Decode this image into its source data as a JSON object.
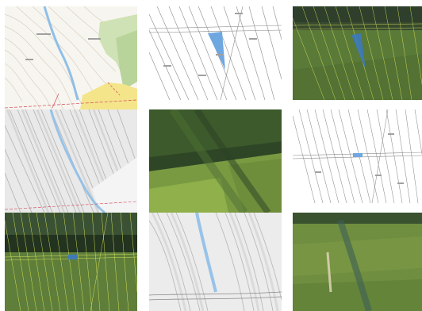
{
  "gallery": {
    "tiles": [
      {
        "kind": "topographic-map-tile"
      },
      {
        "kind": "cadastral-plan-tile"
      },
      {
        "kind": "aerial-photo-cadastral-overlay-tile"
      },
      {
        "kind": "hillshade-relief-tile"
      },
      {
        "kind": "aerial-photo-tile"
      },
      {
        "kind": "cadastral-plan-tile"
      },
      {
        "kind": "aerial-photo-cadastral-overlay-tile"
      },
      {
        "kind": "hillshade-relief-tile"
      },
      {
        "kind": "aerial-photo-tile"
      }
    ]
  },
  "colors": {
    "water": "#8fbfe8",
    "parcel_fill_blue": "#6fa8e0",
    "forest_green": "#b9d49b",
    "settlement_yellow": "#f4e58a",
    "road_red": "#d65a6a",
    "aerial_dark": "#2e3f2c",
    "aerial_field": "#5a7a38",
    "aerial_bright": "#8fb04a",
    "overlay_yellow": "#e8f060",
    "cad_line": "#8c8c8c",
    "hillshade_bg": "#e9e9e9"
  }
}
